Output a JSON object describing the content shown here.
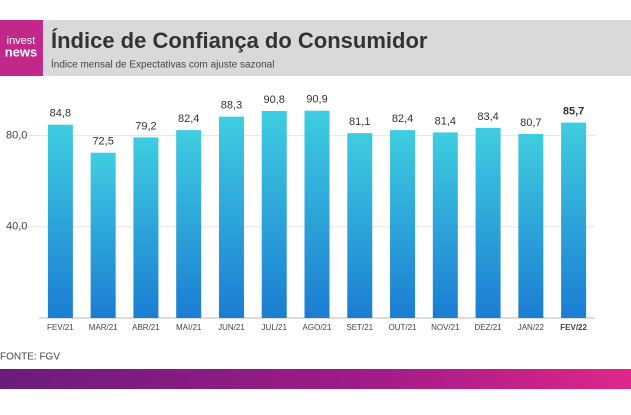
{
  "chart_data": {
    "type": "bar",
    "logo": [
      "invest",
      "news"
    ],
    "title": "Índice de Confiança do Consumidor",
    "subtitle": "Índice mensal de Expectativas com ajuste sazonal",
    "source": "FONTE: FGV",
    "categories": [
      "FEV/21",
      "MAR/21",
      "ABR/21",
      "MAI/21",
      "JUN/21",
      "JUL/21",
      "AGO/21",
      "SET/21",
      "OUT/21",
      "NOV/21",
      "DEZ/21",
      "JAN/22",
      "FEV/22"
    ],
    "values": [
      84.8,
      72.5,
      79.2,
      82.4,
      88.3,
      90.8,
      90.9,
      81.1,
      82.4,
      81.4,
      83.4,
      80.7,
      85.7
    ],
    "value_labels": [
      "84,8",
      "72,5",
      "79,2",
      "82,4",
      "88,3",
      "90,8",
      "90,9",
      "81,1",
      "82,4",
      "81,4",
      "83,4",
      "80,7",
      "85,7"
    ],
    "gradient": [
      "#3fcde0",
      "#1b7dd2"
    ],
    "ylim": [
      0,
      100
    ],
    "yticks": [
      {
        "value": 40,
        "label": "40,0"
      },
      {
        "value": 80,
        "label": "80,0"
      }
    ],
    "grid": true
  }
}
